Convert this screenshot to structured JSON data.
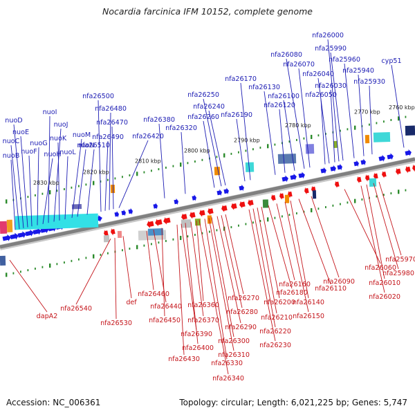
{
  "title": "Nocardia farcinica IFM 10152, complete genome",
  "accession": "Accession: NC_006361",
  "summary": "Topology: circular; Length: 6,021,225 bp; Genes: 5,747",
  "colors": {
    "forward_label": "#1b1bb3",
    "reverse_label": "#c4141a",
    "forward_arrow": "#1818e8",
    "reverse_arrow": "#ee1010",
    "backbone": "#808080",
    "tick": "#2a8a2a"
  },
  "ruler_labels": [
    "2760 kbp",
    "2770 kbp",
    "2780 kbp",
    "2790 kbp",
    "2800 kbp",
    "2810 kbp",
    "2820 kbp",
    "2830 kbp"
  ],
  "forward_genes": [
    "nuoB",
    "nuoC",
    "nuoD",
    "nuoE",
    "nuoF",
    "nuoG",
    "nuoH",
    "nuoI",
    "nuoJ",
    "nuoK",
    "nuoL",
    "nuoM",
    "nuoN",
    "nfa26510",
    "nfa26500",
    "nfa26490",
    "nfa26480",
    "nfa26470",
    "nfa26420",
    "nfa26380",
    "nfa26320",
    "nfa26260",
    "nfa26250",
    "nfa26240",
    "nfa26190",
    "nfa26170",
    "nfa26130",
    "nfa26120",
    "nfa26100",
    "nfa26080",
    "nfa26070",
    "nfa26050",
    "nfa26040",
    "nfa26030",
    "nfa26000",
    "nfa25990",
    "nfa25960",
    "nfa25940",
    "nfa25930",
    "cyp51"
  ],
  "reverse_genes": [
    "dapA2",
    "nfa26540",
    "nfa26530",
    "def",
    "nfa26460",
    "nfa26440",
    "nfa26450",
    "nfa26430",
    "nfa26390",
    "nfa26400",
    "nfa26370",
    "nfa26360",
    "nfa26340",
    "nfa26330",
    "nfa26310",
    "nfa26300",
    "nfa26290",
    "nfa26280",
    "nfa26270",
    "nfa26230",
    "nfa26220",
    "nfa26210",
    "nfa26200",
    "nfa26180",
    "nfa26160",
    "nfa26150",
    "nfa26140",
    "nfa26110",
    "nfa26090",
    "nfa26060",
    "nfa26020",
    "nfa26010",
    "nfa25980",
    "nfa25970"
  ]
}
